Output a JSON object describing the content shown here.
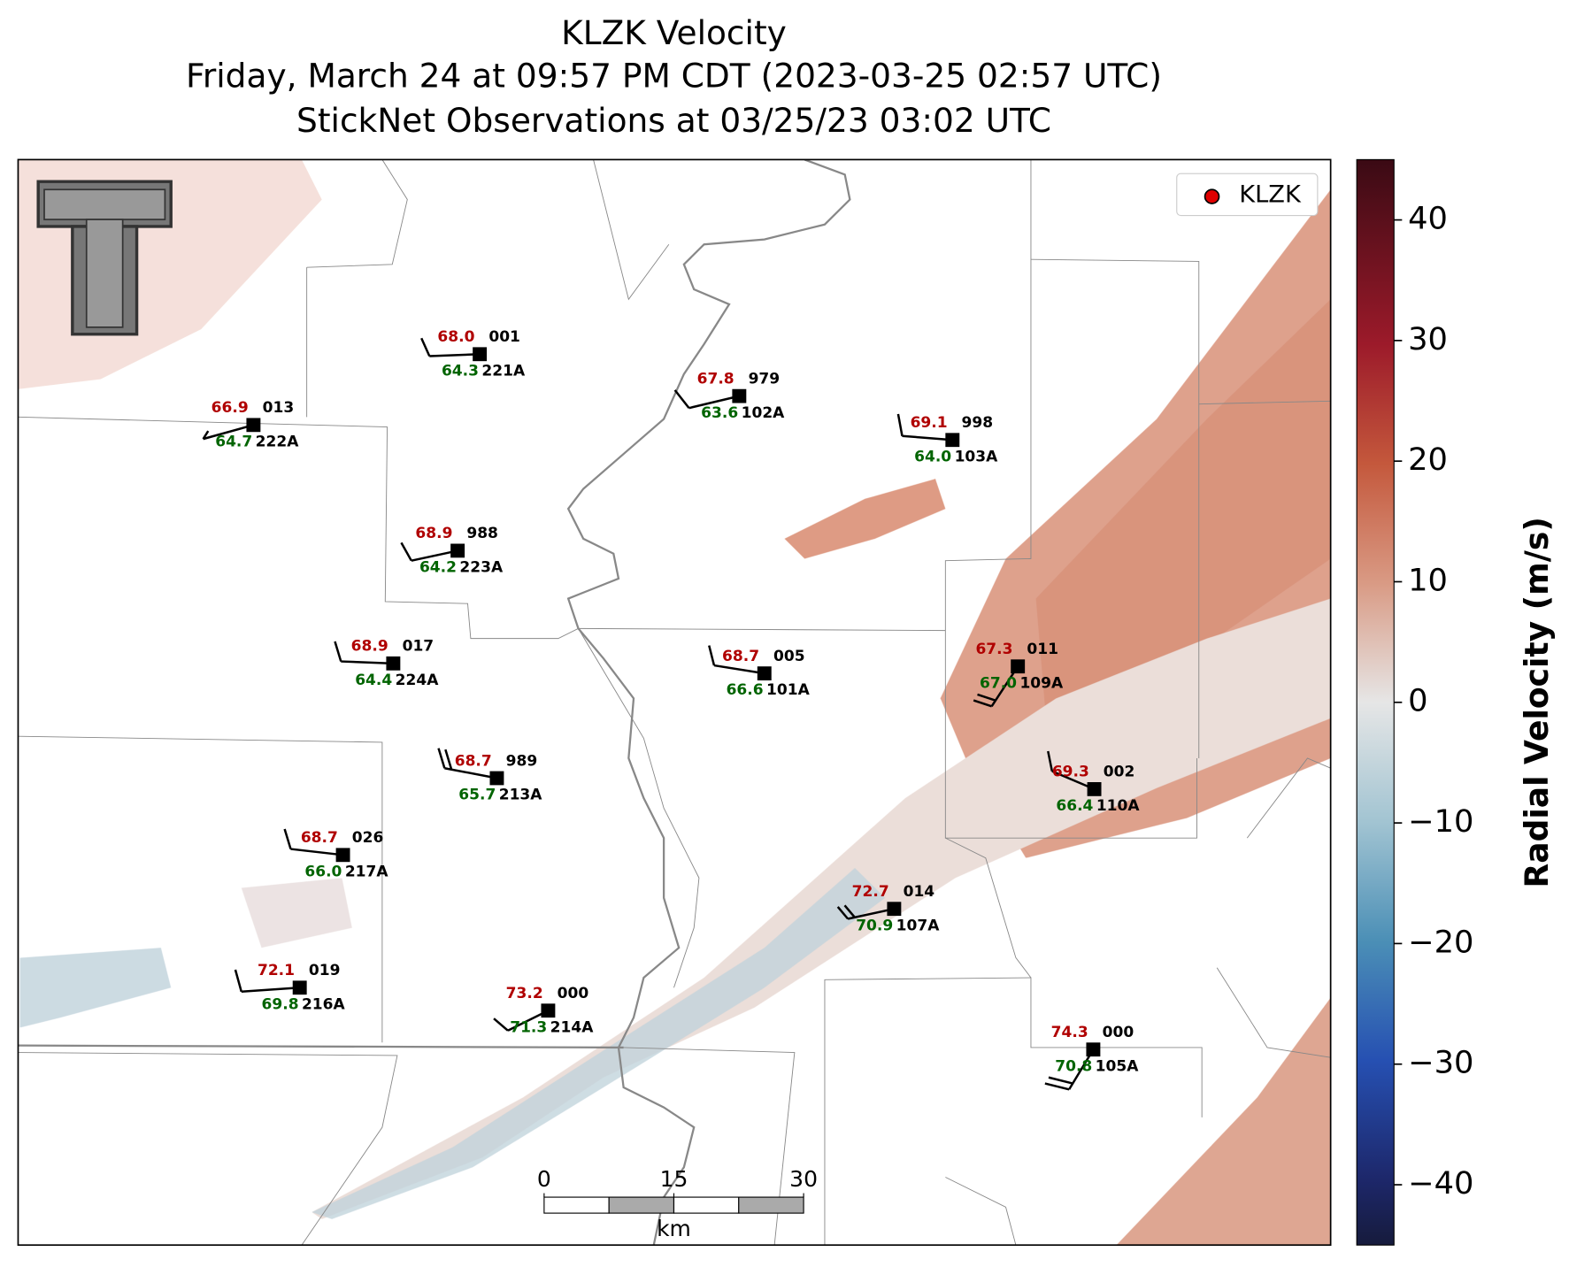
{
  "title": "KLZK Velocity",
  "subtitle_lines": [
    "Friday, March 24 at 09:57 PM CDT (2023-03-25 02:57 UTC)",
    "StickNet Observations at 03/25/23 03:02 UTC"
  ],
  "legend": {
    "label": "KLZK"
  },
  "colorbar": {
    "label": "Radial Velocity (m/s)",
    "vlim": [
      -45,
      45
    ],
    "ticks": [
      40,
      30,
      20,
      10,
      0,
      {
        "value": -10,
        "label": "−10"
      },
      {
        "value": -20,
        "label": "−20"
      },
      {
        "value": -30,
        "label": "−30"
      },
      {
        "value": -40,
        "label": "−40"
      }
    ]
  },
  "stations": [
    {
      "temp": "68.0",
      "dewpoint": "64.3",
      "probe": "001",
      "station": "221A"
    },
    {
      "temp": "66.9",
      "dewpoint": "64.7",
      "probe": "013",
      "station": "222A"
    },
    {
      "temp": "67.8",
      "dewpoint": "63.6",
      "probe": "979",
      "station": "102A"
    },
    {
      "temp": "69.1",
      "dewpoint": "64.0",
      "probe": "998",
      "station": "103A"
    },
    {
      "temp": "68.9",
      "dewpoint": "64.2",
      "probe": "988",
      "station": "223A"
    },
    {
      "temp": "68.9",
      "dewpoint": "64.4",
      "probe": "017",
      "station": "224A"
    },
    {
      "temp": "68.7",
      "dewpoint": "66.6",
      "probe": "005",
      "station": "101A"
    },
    {
      "temp": "67.3",
      "dewpoint": "67.0",
      "probe": "011",
      "station": "109A"
    },
    {
      "temp": "68.7",
      "dewpoint": "65.7",
      "probe": "989",
      "station": "213A"
    },
    {
      "temp": "69.3",
      "dewpoint": "66.4",
      "probe": "002",
      "station": "110A"
    },
    {
      "temp": "68.7",
      "dewpoint": "66.0",
      "probe": "026",
      "station": "217A"
    },
    {
      "temp": "72.7",
      "dewpoint": "70.9",
      "probe": "014",
      "station": "107A"
    },
    {
      "temp": "72.1",
      "dewpoint": "69.8",
      "probe": "019",
      "station": "216A"
    },
    {
      "temp": "73.2",
      "dewpoint": "71.3",
      "probe": "000",
      "station": "214A"
    },
    {
      "temp": "74.3",
      "dewpoint": "70.8",
      "probe": "000",
      "station": "105A"
    }
  ],
  "scale_bar": {
    "ticks": [
      0,
      15,
      30
    ],
    "unit": "km"
  }
}
